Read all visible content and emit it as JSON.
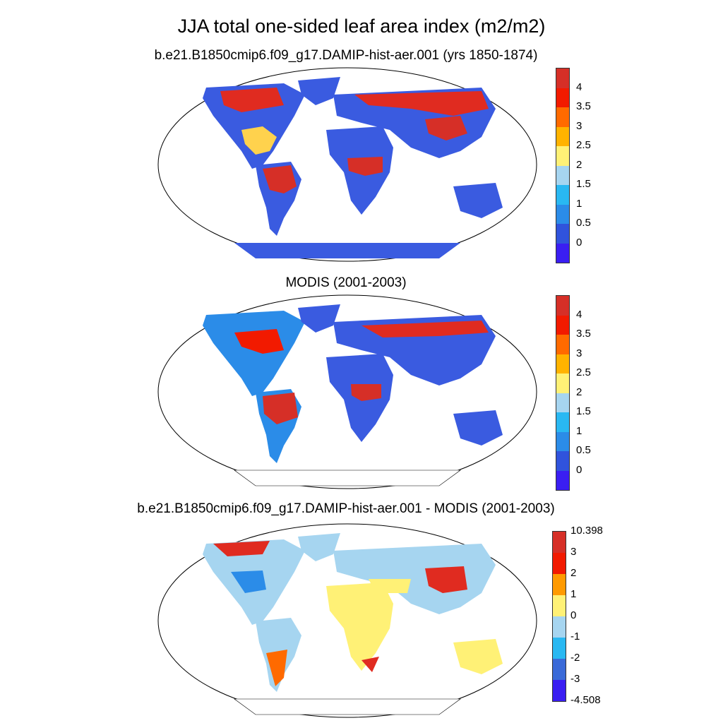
{
  "main_title": "JJA total one-sided leaf area index (m2/m2)",
  "panels": [
    {
      "title": "b.e21.B1850cmip6.f09_g17.DAMIP-hist-aer.001 (yrs 1850-1874)",
      "colorbar": {
        "labels": [
          "4",
          "3.5",
          "3",
          "2.5",
          "2",
          "1.5",
          "1",
          "0.5",
          "0"
        ],
        "colors": [
          "#d62f27",
          "#f21a00",
          "#ff6a00",
          "#ffb300",
          "#fff176",
          "#a6d5f0",
          "#29b8f2",
          "#2b8ce8",
          "#3053dc",
          "#3a1ef2"
        ]
      }
    },
    {
      "title": "MODIS (2001-2003)",
      "colorbar": {
        "labels": [
          "4",
          "3.5",
          "3",
          "2.5",
          "2",
          "1.5",
          "1",
          "0.5",
          "0"
        ],
        "colors": [
          "#d62f27",
          "#f21a00",
          "#ff6a00",
          "#ffb300",
          "#fff176",
          "#a6d5f0",
          "#29b8f2",
          "#2b8ce8",
          "#3053dc",
          "#3a1ef2"
        ]
      }
    },
    {
      "title": "b.e21.B1850cmip6.f09_g17.DAMIP-hist-aer.001 - MODIS (2001-2003)",
      "colorbar": {
        "labels": [
          "10.398",
          "3",
          "2",
          "1",
          "0",
          "-1",
          "-2",
          "-3",
          "-4.508"
        ],
        "colors": [
          "#d62f27",
          "#f21a00",
          "#ff9a00",
          "#fff176",
          "#a6d5f0",
          "#29b8f2",
          "#3a6ad8",
          "#3a1ef2"
        ]
      }
    }
  ]
}
